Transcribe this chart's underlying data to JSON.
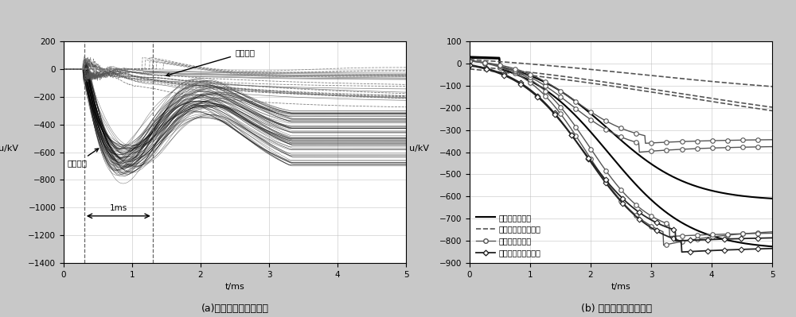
{
  "fig_width": 10.0,
  "fig_height": 3.99,
  "fig_bg_color": "#c8c8c8",
  "plot_bg_color": "#ffffff",
  "grid_color": "#bbbbbb",
  "ax1": {
    "title": "(a)正极线路电压曲线簇",
    "xlabel": "t/ms",
    "ylabel": "u/kV",
    "xlim": [
      0,
      5.0
    ],
    "ylim": [
      -1400,
      200
    ],
    "yticks": [
      200,
      0,
      -200,
      -400,
      -600,
      -800,
      -1000,
      -1200,
      -1400
    ],
    "xticks": [
      0,
      1.0,
      2.0,
      3.0,
      4.0,
      5.0
    ],
    "vline1": 0.3,
    "vline2": 1.3,
    "annotation_line_fault": "线路故障",
    "annotation_external_fault": "区外故障",
    "arrow_1ms": "1ms"
  },
  "ax2": {
    "title": "(b) 区外故障电压曲线簇",
    "xlabel": "t/ms",
    "ylabel": "u/kV",
    "xlim": [
      0,
      5.0
    ],
    "ylim": [
      -900,
      100
    ],
    "yticks": [
      100,
      0,
      -100,
      -200,
      -300,
      -400,
      -500,
      -600,
      -700,
      -800,
      -900
    ],
    "xticks": [
      0,
      1.0,
      2.0,
      3.0,
      4.0,
      5.0
    ]
  }
}
